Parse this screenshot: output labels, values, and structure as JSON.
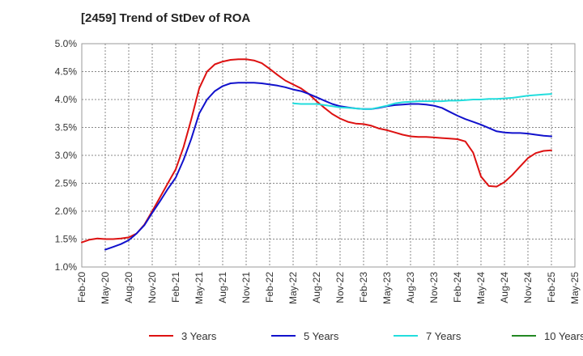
{
  "chart_data": {
    "type": "line",
    "title": "[2459]  Trend of StDev of ROA",
    "xlabel": "",
    "ylabel": "",
    "ylim": [
      1.0,
      5.0
    ],
    "y_ticks": [
      "1.0%",
      "1.5%",
      "2.0%",
      "2.5%",
      "3.0%",
      "3.5%",
      "4.0%",
      "4.5%",
      "5.0%"
    ],
    "y_tick_values": [
      1.0,
      1.5,
      2.0,
      2.5,
      3.0,
      3.5,
      4.0,
      4.5,
      5.0
    ],
    "x_ticks": [
      "Feb-20",
      "May-20",
      "Aug-20",
      "Nov-20",
      "Feb-21",
      "May-21",
      "Aug-21",
      "Nov-21",
      "Feb-22",
      "May-22",
      "Aug-22",
      "Nov-22",
      "Feb-23",
      "May-23",
      "Aug-23",
      "Nov-23",
      "Feb-24",
      "May-24",
      "Aug-24",
      "Nov-24",
      "Feb-25",
      "May-25"
    ],
    "x_range_months": [
      0,
      63
    ],
    "grid": true,
    "legend_position": "bottom",
    "series": [
      {
        "name": "3 Years",
        "color": "#dd1111",
        "x": [
          0,
          1,
          2,
          3,
          4,
          5,
          6,
          7,
          8,
          9,
          10,
          11,
          12,
          13,
          14,
          15,
          16,
          17,
          18,
          19,
          20,
          21,
          22,
          23,
          24,
          25,
          26,
          27,
          28,
          29,
          30,
          31,
          32,
          33,
          34,
          35,
          36,
          37,
          38,
          39,
          40,
          41,
          42,
          43,
          44,
          45,
          46,
          47,
          48,
          49,
          50,
          51,
          52,
          53,
          54,
          55,
          56,
          57,
          58,
          59,
          60
        ],
        "values": [
          1.44,
          1.49,
          1.51,
          1.5,
          1.5,
          1.51,
          1.53,
          1.6,
          1.76,
          2.0,
          2.25,
          2.5,
          2.75,
          3.15,
          3.65,
          4.2,
          4.5,
          4.63,
          4.68,
          4.71,
          4.72,
          4.72,
          4.7,
          4.65,
          4.55,
          4.44,
          4.34,
          4.27,
          4.2,
          4.1,
          3.97,
          3.85,
          3.74,
          3.66,
          3.6,
          3.57,
          3.56,
          3.53,
          3.48,
          3.45,
          3.41,
          3.37,
          3.34,
          3.33,
          3.33,
          3.32,
          3.31,
          3.3,
          3.29,
          3.25,
          3.05,
          2.62,
          2.45,
          2.44,
          2.52,
          2.65,
          2.8,
          2.95,
          3.04,
          3.08,
          3.09
        ]
      },
      {
        "name": "5 Years",
        "color": "#1111cc",
        "x": [
          3,
          4,
          5,
          6,
          7,
          8,
          9,
          10,
          11,
          12,
          13,
          14,
          15,
          16,
          17,
          18,
          19,
          20,
          21,
          22,
          23,
          24,
          25,
          26,
          27,
          28,
          29,
          30,
          31,
          32,
          33,
          34,
          35,
          36,
          37,
          38,
          39,
          40,
          41,
          42,
          43,
          44,
          45,
          46,
          47,
          48,
          49,
          50,
          51,
          52,
          53,
          54,
          55,
          56,
          57,
          58,
          59,
          60
        ],
        "values": [
          1.31,
          1.36,
          1.41,
          1.48,
          1.6,
          1.75,
          1.97,
          2.18,
          2.4,
          2.6,
          2.92,
          3.3,
          3.75,
          4.0,
          4.15,
          4.24,
          4.29,
          4.3,
          4.3,
          4.3,
          4.29,
          4.27,
          4.25,
          4.22,
          4.18,
          4.15,
          4.1,
          4.04,
          3.98,
          3.92,
          3.88,
          3.86,
          3.84,
          3.83,
          3.83,
          3.85,
          3.88,
          3.9,
          3.91,
          3.92,
          3.92,
          3.91,
          3.89,
          3.85,
          3.78,
          3.71,
          3.65,
          3.6,
          3.55,
          3.49,
          3.43,
          3.41,
          3.4,
          3.4,
          3.39,
          3.37,
          3.35,
          3.34
        ]
      },
      {
        "name": "7 Years",
        "color": "#22dddd",
        "x": [
          27,
          28,
          29,
          30,
          31,
          32,
          33,
          34,
          35,
          36,
          37,
          38,
          39,
          40,
          41,
          42,
          43,
          44,
          45,
          46,
          47,
          48,
          49,
          50,
          51,
          52,
          53,
          54,
          55,
          56,
          57,
          58,
          59,
          60
        ],
        "values": [
          3.93,
          3.92,
          3.92,
          3.92,
          3.9,
          3.88,
          3.86,
          3.85,
          3.84,
          3.83,
          3.83,
          3.86,
          3.89,
          3.93,
          3.95,
          3.96,
          3.97,
          3.97,
          3.97,
          3.97,
          3.98,
          3.98,
          3.99,
          4.0,
          4.0,
          4.01,
          4.01,
          4.02,
          4.03,
          4.05,
          4.07,
          4.08,
          4.09,
          4.1
        ]
      },
      {
        "name": "10 Years",
        "color": "#228822",
        "x": [],
        "values": []
      }
    ]
  }
}
